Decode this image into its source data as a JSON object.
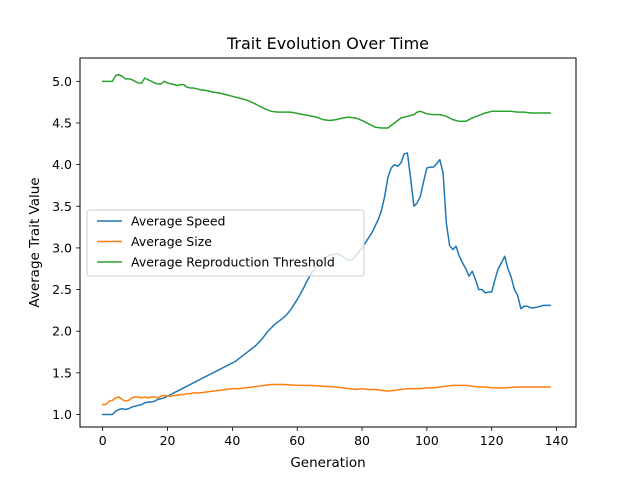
{
  "chart_data": {
    "type": "line",
    "title": "Trait Evolution Over Time",
    "xlabel": "Generation",
    "ylabel": "Average Trait Value",
    "xlim": [
      -7,
      146
    ],
    "ylim": [
      0.85,
      5.28
    ],
    "xticks": [
      0,
      20,
      40,
      60,
      80,
      100,
      120,
      140
    ],
    "xtick_labels": [
      "0",
      "20",
      "40",
      "60",
      "80",
      "100",
      "120",
      "140"
    ],
    "yticks": [
      1.0,
      1.5,
      2.0,
      2.5,
      3.0,
      3.5,
      4.0,
      4.5,
      5.0
    ],
    "ytick_labels": [
      "1.0",
      "1.5",
      "2.0",
      "2.5",
      "3.0",
      "3.5",
      "4.0",
      "4.5",
      "5.0"
    ],
    "grid": false,
    "legend_position": "center-left",
    "series": [
      {
        "name": "Average Speed",
        "color": "#1f77b4",
        "points": [
          [
            0,
            1.0
          ],
          [
            1,
            1.0
          ],
          [
            2,
            1.0
          ],
          [
            3,
            1.0
          ],
          [
            4,
            1.04
          ],
          [
            5,
            1.06
          ],
          [
            6,
            1.07
          ],
          [
            7,
            1.06
          ],
          [
            8,
            1.07
          ],
          [
            9,
            1.09
          ],
          [
            10,
            1.1
          ],
          [
            11,
            1.11
          ],
          [
            12,
            1.12
          ],
          [
            13,
            1.14
          ],
          [
            14,
            1.15
          ],
          [
            15,
            1.15
          ],
          [
            16,
            1.16
          ],
          [
            17,
            1.18
          ],
          [
            18,
            1.19
          ],
          [
            19,
            1.2
          ],
          [
            20,
            1.22
          ],
          [
            21,
            1.24
          ],
          [
            22,
            1.26
          ],
          [
            23,
            1.28
          ],
          [
            24,
            1.3
          ],
          [
            25,
            1.32
          ],
          [
            26,
            1.34
          ],
          [
            27,
            1.36
          ],
          [
            28,
            1.38
          ],
          [
            29,
            1.4
          ],
          [
            30,
            1.42
          ],
          [
            31,
            1.44
          ],
          [
            32,
            1.46
          ],
          [
            33,
            1.48
          ],
          [
            34,
            1.5
          ],
          [
            35,
            1.52
          ],
          [
            36,
            1.54
          ],
          [
            37,
            1.56
          ],
          [
            38,
            1.58
          ],
          [
            39,
            1.6
          ],
          [
            40,
            1.62
          ],
          [
            41,
            1.64
          ],
          [
            42,
            1.67
          ],
          [
            43,
            1.7
          ],
          [
            44,
            1.73
          ],
          [
            45,
            1.76
          ],
          [
            46,
            1.79
          ],
          [
            47,
            1.82
          ],
          [
            48,
            1.86
          ],
          [
            49,
            1.9
          ],
          [
            50,
            1.95
          ],
          [
            51,
            2.0
          ],
          [
            52,
            2.04
          ],
          [
            53,
            2.08
          ],
          [
            54,
            2.11
          ],
          [
            55,
            2.14
          ],
          [
            56,
            2.17
          ],
          [
            57,
            2.21
          ],
          [
            58,
            2.26
          ],
          [
            59,
            2.32
          ],
          [
            60,
            2.38
          ],
          [
            61,
            2.45
          ],
          [
            62,
            2.52
          ],
          [
            63,
            2.6
          ],
          [
            64,
            2.67
          ],
          [
            65,
            2.73
          ],
          [
            66,
            2.78
          ],
          [
            67,
            2.83
          ],
          [
            68,
            2.86
          ],
          [
            69,
            2.89
          ],
          [
            70,
            2.91
          ],
          [
            71,
            2.92
          ],
          [
            72,
            2.93
          ],
          [
            73,
            2.92
          ],
          [
            74,
            2.9
          ],
          [
            75,
            2.87
          ],
          [
            76,
            2.85
          ],
          [
            77,
            2.86
          ],
          [
            78,
            2.9
          ],
          [
            79,
            2.95
          ],
          [
            80,
            3.0
          ],
          [
            81,
            3.06
          ],
          [
            82,
            3.12
          ],
          [
            83,
            3.18
          ],
          [
            84,
            3.26
          ],
          [
            85,
            3.34
          ],
          [
            86,
            3.45
          ],
          [
            87,
            3.62
          ],
          [
            88,
            3.85
          ],
          [
            89,
            3.96
          ],
          [
            90,
            4.0
          ],
          [
            91,
            3.98
          ],
          [
            92,
            4.02
          ],
          [
            93,
            4.13
          ],
          [
            94,
            4.14
          ],
          [
            95,
            3.83
          ],
          [
            96,
            3.5
          ],
          [
            97,
            3.54
          ],
          [
            98,
            3.62
          ],
          [
            99,
            3.8
          ],
          [
            100,
            3.96
          ],
          [
            101,
            3.97
          ],
          [
            102,
            3.97
          ],
          [
            103,
            4.01
          ],
          [
            104,
            4.06
          ],
          [
            105,
            3.9
          ],
          [
            106,
            3.3
          ],
          [
            107,
            3.03
          ],
          [
            108,
            2.98
          ],
          [
            109,
            3.02
          ],
          [
            110,
            2.9
          ],
          [
            111,
            2.82
          ],
          [
            112,
            2.75
          ],
          [
            113,
            2.66
          ],
          [
            114,
            2.72
          ],
          [
            115,
            2.62
          ],
          [
            116,
            2.5
          ],
          [
            117,
            2.5
          ],
          [
            118,
            2.46
          ],
          [
            119,
            2.47
          ],
          [
            120,
            2.47
          ],
          [
            121,
            2.62
          ],
          [
            122,
            2.75
          ],
          [
            123,
            2.82
          ],
          [
            124,
            2.9
          ],
          [
            125,
            2.75
          ],
          [
            126,
            2.65
          ],
          [
            127,
            2.5
          ],
          [
            128,
            2.43
          ],
          [
            129,
            2.27
          ],
          [
            130,
            2.3
          ],
          [
            131,
            2.3
          ],
          [
            132,
            2.28
          ],
          [
            133,
            2.28
          ],
          [
            134,
            2.29
          ],
          [
            135,
            2.3
          ],
          [
            136,
            2.31
          ],
          [
            137,
            2.31
          ],
          [
            138,
            2.31
          ]
        ]
      },
      {
        "name": "Average Size",
        "color": "#ff7f0e",
        "points": [
          [
            0,
            1.12
          ],
          [
            1,
            1.12
          ],
          [
            2,
            1.16
          ],
          [
            3,
            1.17
          ],
          [
            4,
            1.2
          ],
          [
            5,
            1.21
          ],
          [
            6,
            1.18
          ],
          [
            7,
            1.16
          ],
          [
            8,
            1.17
          ],
          [
            9,
            1.2
          ],
          [
            10,
            1.21
          ],
          [
            11,
            1.21
          ],
          [
            12,
            1.2
          ],
          [
            13,
            1.21
          ],
          [
            14,
            1.2
          ],
          [
            15,
            1.21
          ],
          [
            16,
            1.21
          ],
          [
            17,
            1.2
          ],
          [
            18,
            1.22
          ],
          [
            19,
            1.23
          ],
          [
            20,
            1.22
          ],
          [
            21,
            1.22
          ],
          [
            22,
            1.23
          ],
          [
            23,
            1.23
          ],
          [
            24,
            1.24
          ],
          [
            25,
            1.24
          ],
          [
            26,
            1.25
          ],
          [
            27,
            1.25
          ],
          [
            28,
            1.26
          ],
          [
            29,
            1.26
          ],
          [
            30,
            1.26
          ],
          [
            32,
            1.27
          ],
          [
            34,
            1.28
          ],
          [
            36,
            1.29
          ],
          [
            38,
            1.3
          ],
          [
            40,
            1.31
          ],
          [
            42,
            1.31
          ],
          [
            44,
            1.32
          ],
          [
            46,
            1.33
          ],
          [
            48,
            1.34
          ],
          [
            50,
            1.35
          ],
          [
            52,
            1.36
          ],
          [
            56,
            1.36
          ],
          [
            60,
            1.35
          ],
          [
            64,
            1.35
          ],
          [
            68,
            1.34
          ],
          [
            72,
            1.33
          ],
          [
            74,
            1.32
          ],
          [
            76,
            1.31
          ],
          [
            78,
            1.3
          ],
          [
            80,
            1.31
          ],
          [
            82,
            1.3
          ],
          [
            84,
            1.3
          ],
          [
            86,
            1.29
          ],
          [
            88,
            1.28
          ],
          [
            90,
            1.29
          ],
          [
            92,
            1.3
          ],
          [
            94,
            1.31
          ],
          [
            96,
            1.31
          ],
          [
            98,
            1.31
          ],
          [
            100,
            1.32
          ],
          [
            102,
            1.32
          ],
          [
            104,
            1.33
          ],
          [
            106,
            1.34
          ],
          [
            108,
            1.35
          ],
          [
            110,
            1.35
          ],
          [
            112,
            1.35
          ],
          [
            114,
            1.34
          ],
          [
            116,
            1.33
          ],
          [
            118,
            1.33
          ],
          [
            120,
            1.32
          ],
          [
            124,
            1.32
          ],
          [
            128,
            1.33
          ],
          [
            132,
            1.33
          ],
          [
            136,
            1.33
          ],
          [
            138,
            1.33
          ]
        ]
      },
      {
        "name": "Average Reproduction Threshold",
        "color": "#2ca02c",
        "points": [
          [
            0,
            5.0
          ],
          [
            1,
            5.0
          ],
          [
            2,
            5.0
          ],
          [
            3,
            5.0
          ],
          [
            4,
            5.07
          ],
          [
            5,
            5.08
          ],
          [
            6,
            5.06
          ],
          [
            7,
            5.03
          ],
          [
            8,
            5.03
          ],
          [
            9,
            5.02
          ],
          [
            10,
            5.0
          ],
          [
            11,
            4.98
          ],
          [
            12,
            4.98
          ],
          [
            13,
            5.04
          ],
          [
            14,
            5.02
          ],
          [
            15,
            5.0
          ],
          [
            16,
            4.98
          ],
          [
            17,
            4.97
          ],
          [
            18,
            4.97
          ],
          [
            19,
            5.0
          ],
          [
            20,
            4.98
          ],
          [
            21,
            4.97
          ],
          [
            22,
            4.96
          ],
          [
            23,
            4.95
          ],
          [
            24,
            4.96
          ],
          [
            25,
            4.96
          ],
          [
            26,
            4.93
          ],
          [
            27,
            4.92
          ],
          [
            28,
            4.92
          ],
          [
            29,
            4.91
          ],
          [
            30,
            4.9
          ],
          [
            32,
            4.89
          ],
          [
            34,
            4.87
          ],
          [
            36,
            4.86
          ],
          [
            38,
            4.84
          ],
          [
            40,
            4.82
          ],
          [
            42,
            4.8
          ],
          [
            44,
            4.78
          ],
          [
            46,
            4.75
          ],
          [
            48,
            4.71
          ],
          [
            50,
            4.67
          ],
          [
            52,
            4.64
          ],
          [
            54,
            4.63
          ],
          [
            58,
            4.63
          ],
          [
            62,
            4.6
          ],
          [
            66,
            4.57
          ],
          [
            68,
            4.54
          ],
          [
            70,
            4.53
          ],
          [
            72,
            4.54
          ],
          [
            74,
            4.56
          ],
          [
            76,
            4.57
          ],
          [
            78,
            4.56
          ],
          [
            80,
            4.53
          ],
          [
            82,
            4.49
          ],
          [
            84,
            4.45
          ],
          [
            86,
            4.44
          ],
          [
            88,
            4.44
          ],
          [
            90,
            4.5
          ],
          [
            92,
            4.56
          ],
          [
            94,
            4.58
          ],
          [
            96,
            4.6
          ],
          [
            97,
            4.63
          ],
          [
            98,
            4.64
          ],
          [
            100,
            4.61
          ],
          [
            102,
            4.6
          ],
          [
            104,
            4.6
          ],
          [
            106,
            4.58
          ],
          [
            108,
            4.54
          ],
          [
            110,
            4.52
          ],
          [
            112,
            4.52
          ],
          [
            114,
            4.56
          ],
          [
            116,
            4.59
          ],
          [
            118,
            4.62
          ],
          [
            120,
            4.64
          ],
          [
            122,
            4.64
          ],
          [
            124,
            4.64
          ],
          [
            126,
            4.64
          ],
          [
            128,
            4.63
          ],
          [
            130,
            4.63
          ],
          [
            132,
            4.62
          ],
          [
            134,
            4.62
          ],
          [
            136,
            4.62
          ],
          [
            138,
            4.62
          ]
        ]
      }
    ]
  }
}
